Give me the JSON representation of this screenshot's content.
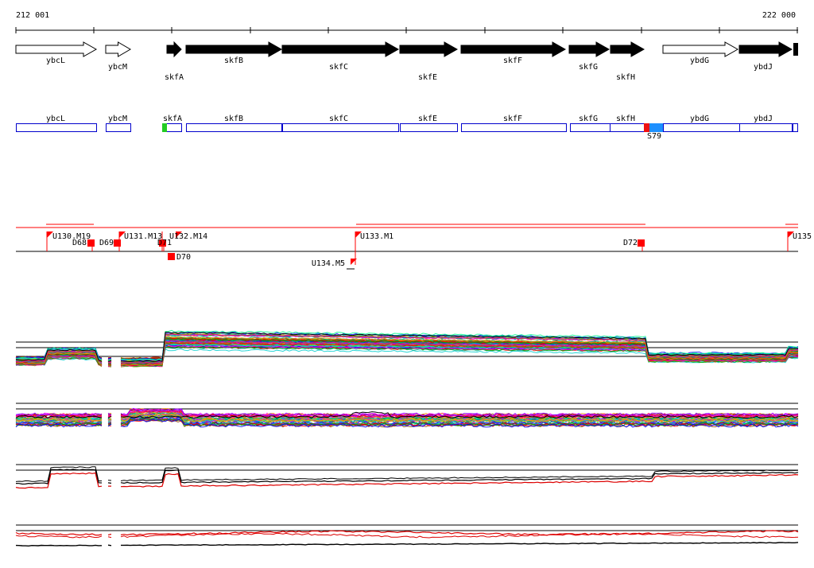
{
  "coords": {
    "start": "212 001",
    "end": "222 000"
  },
  "genes": [
    {
      "name": "ybcL",
      "filled": false
    },
    {
      "name": "ybcM",
      "filled": false
    },
    {
      "name": "skfA",
      "filled": true
    },
    {
      "name": "skfB",
      "filled": true
    },
    {
      "name": "skfC",
      "filled": true
    },
    {
      "name": "skfE",
      "filled": true
    },
    {
      "name": "skfF",
      "filled": true
    },
    {
      "name": "skfG",
      "filled": true
    },
    {
      "name": "skfH",
      "filled": true
    },
    {
      "name": "ybdG",
      "filled": false
    },
    {
      "name": "ybdJ",
      "filled": true
    }
  ],
  "segments": [
    {
      "name": "ybcL"
    },
    {
      "name": "ybcM"
    },
    {
      "name": "skfA"
    },
    {
      "name": "skfB"
    },
    {
      "name": "skfC"
    },
    {
      "name": "skfE"
    },
    {
      "name": "skfF"
    },
    {
      "name": "skfG"
    },
    {
      "name": "skfH"
    },
    {
      "name": "ybdG"
    },
    {
      "name": "ybdJ"
    }
  ],
  "site_marker": {
    "label": "S79"
  },
  "markers": [
    {
      "name": "U130.M19"
    },
    {
      "name": "D68"
    },
    {
      "name": "D69"
    },
    {
      "name": "U131.M13"
    },
    {
      "name": "D71"
    },
    {
      "name": "U132.M14"
    },
    {
      "name": "D70"
    },
    {
      "name": "U133.M1"
    },
    {
      "name": "U134.M5"
    },
    {
      "name": "D72"
    },
    {
      "name": "U135"
    }
  ],
  "colors": {
    "gene_fill": "#000000",
    "segment_border": "#0000cc",
    "marker": "#ff0000",
    "highlight_green": "#22cc22",
    "highlight_red": "#ee1111",
    "highlight_blue": "#1e90ff",
    "trace_palette": [
      "#ff0000",
      "#00aa00",
      "#0000ff",
      "#ff00ff",
      "#00cccc",
      "#cccc00",
      "#ff8800",
      "#8800ff",
      "#008888",
      "#888800",
      "#ff0088",
      "#00ff88",
      "#884400",
      "#4444ff",
      "#aa0000",
      "#00aa88"
    ]
  }
}
